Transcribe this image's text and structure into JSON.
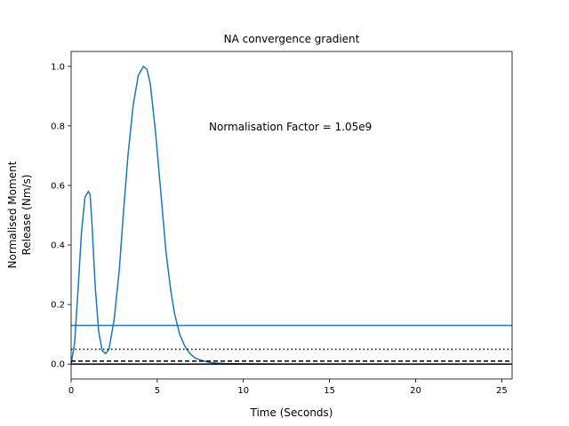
{
  "chart_data": {
    "type": "line",
    "title": "NA convergence gradient",
    "xlabel": "Time (Seconds)",
    "ylabel_lines": [
      "Normalised Moment",
      "Release (Nm/s)"
    ],
    "xlim": [
      0,
      25.6
    ],
    "ylim": [
      -0.05,
      1.05
    ],
    "xticks": [
      0,
      5,
      10,
      15,
      20,
      25
    ],
    "yticks": [
      0.0,
      0.2,
      0.4,
      0.6,
      0.8,
      1.0
    ],
    "xtick_labels": [
      "0",
      "5",
      "10",
      "15",
      "20",
      "25"
    ],
    "ytick_labels": [
      "0.0",
      "0.2",
      "0.4",
      "0.6",
      "0.8",
      "1.0"
    ],
    "annotation": {
      "text": "Normalisation Factor = 1.05e9",
      "x": 8.0,
      "y": 0.8
    },
    "grid": false,
    "series": [
      {
        "color": "#1f77b4",
        "style": "solid",
        "x": [
          0.0,
          0.2,
          0.4,
          0.6,
          0.8,
          1.0,
          1.1,
          1.2,
          1.4,
          1.6,
          1.8,
          2.0,
          2.2,
          2.5,
          2.8,
          3.0,
          3.3,
          3.6,
          3.9,
          4.2,
          4.4,
          4.6,
          4.9,
          5.2,
          5.5,
          5.8,
          6.0,
          6.3,
          6.6,
          6.9,
          7.2,
          7.6,
          8.0,
          8.5,
          9.0,
          10.0,
          12.0,
          15.0,
          20.0,
          25.6
        ],
        "y": [
          0.0,
          0.07,
          0.25,
          0.44,
          0.56,
          0.58,
          0.57,
          0.48,
          0.26,
          0.11,
          0.045,
          0.035,
          0.05,
          0.15,
          0.32,
          0.48,
          0.7,
          0.87,
          0.97,
          1.0,
          0.99,
          0.94,
          0.78,
          0.58,
          0.38,
          0.24,
          0.17,
          0.1,
          0.06,
          0.035,
          0.02,
          0.012,
          0.006,
          0.003,
          0.002,
          0.001,
          0.0005,
          0.0003,
          0.0002,
          0.0002
        ]
      },
      {
        "color": "#1f77b4",
        "style": "solid",
        "x": [
          0.0,
          25.6
        ],
        "y": [
          0.13,
          0.13
        ]
      },
      {
        "color": "#000000",
        "style": "dotted",
        "x": [
          0.0,
          25.6
        ],
        "y": [
          0.05,
          0.05
        ]
      },
      {
        "color": "#000000",
        "style": "dashed",
        "x": [
          0.0,
          25.6
        ],
        "y": [
          0.01,
          0.01
        ]
      },
      {
        "color": "#000000",
        "style": "solid",
        "x": [
          0.0,
          25.6
        ],
        "y": [
          0.0,
          0.0
        ]
      }
    ]
  }
}
